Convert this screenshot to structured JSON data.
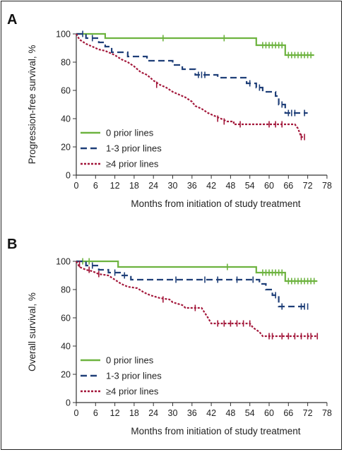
{
  "chart_data": [
    {
      "type": "line",
      "panel": "A",
      "ylabel": "Progression-free survival, %",
      "xlabel": "Months from initiation of study treatment",
      "xlim": [
        0,
        78
      ],
      "ylim": [
        0,
        100
      ],
      "xticks": [
        0,
        6,
        12,
        18,
        24,
        30,
        36,
        42,
        48,
        54,
        60,
        66,
        72,
        78
      ],
      "yticks": [
        0,
        20,
        40,
        60,
        80,
        100
      ],
      "grid": false,
      "legend": "bottom-left",
      "series": [
        {
          "name": "0 prior lines",
          "color": "#6db33f",
          "dash": "solid",
          "points": [
            [
              0,
              100
            ],
            [
              9,
              100
            ],
            [
              9,
              97
            ],
            [
              56,
              97
            ],
            [
              56,
              92
            ],
            [
              65,
              92
            ],
            [
              65,
              85
            ],
            [
              74,
              85
            ]
          ],
          "censor": [
            [
              27,
              97
            ],
            [
              46,
              97
            ],
            [
              58,
              92
            ],
            [
              59,
              92
            ],
            [
              60,
              92
            ],
            [
              61,
              92
            ],
            [
              62,
              92
            ],
            [
              63,
              92
            ],
            [
              64,
              92
            ],
            [
              66,
              85
            ],
            [
              67,
              85
            ],
            [
              68,
              85
            ],
            [
              69,
              85
            ],
            [
              70,
              85
            ],
            [
              71,
              85
            ],
            [
              72,
              85
            ],
            [
              73,
              85
            ]
          ]
        },
        {
          "name": "1-3 prior lines",
          "color": "#1f3f78",
          "dash": "dashed",
          "points": [
            [
              0,
              100
            ],
            [
              3,
              100
            ],
            [
              3,
              97
            ],
            [
              7,
              97
            ],
            [
              7,
              94
            ],
            [
              9,
              94
            ],
            [
              9,
              91
            ],
            [
              11,
              91
            ],
            [
              11,
              87
            ],
            [
              16,
              87
            ],
            [
              16,
              84
            ],
            [
              22,
              84
            ],
            [
              22,
              81
            ],
            [
              30,
              81
            ],
            [
              30,
              78
            ],
            [
              33,
              78
            ],
            [
              33,
              75
            ],
            [
              37,
              75
            ],
            [
              37,
              71
            ],
            [
              44,
              71
            ],
            [
              44,
              69
            ],
            [
              53,
              69
            ],
            [
              53,
              65
            ],
            [
              56,
              65
            ],
            [
              56,
              62
            ],
            [
              58,
              62
            ],
            [
              58,
              59
            ],
            [
              62,
              59
            ],
            [
              62,
              56
            ],
            [
              63,
              56
            ],
            [
              63,
              50
            ],
            [
              65,
              50
            ],
            [
              65,
              44
            ],
            [
              72,
              44
            ]
          ],
          "censor": [
            [
              2,
              100
            ],
            [
              5,
              97
            ],
            [
              38,
              71
            ],
            [
              39,
              71
            ],
            [
              40,
              71
            ],
            [
              54,
              65
            ],
            [
              57,
              62
            ],
            [
              64,
              50
            ],
            [
              66,
              44
            ],
            [
              67,
              44
            ],
            [
              68,
              44
            ],
            [
              71,
              44
            ]
          ]
        },
        {
          "name": "≥4 prior lines",
          "color": "#a3173a",
          "dash": "dotted",
          "points": [
            [
              0,
              100
            ],
            [
              1,
              96
            ],
            [
              3,
              93
            ],
            [
              5,
              91
            ],
            [
              7,
              89
            ],
            [
              9,
              88
            ],
            [
              12,
              85
            ],
            [
              14,
              82
            ],
            [
              16,
              80
            ],
            [
              18,
              77
            ],
            [
              19,
              75
            ],
            [
              20,
              73
            ],
            [
              22,
              71
            ],
            [
              24,
              67
            ],
            [
              26,
              64
            ],
            [
              28,
              62
            ],
            [
              30,
              59
            ],
            [
              32,
              57
            ],
            [
              34,
              55
            ],
            [
              36,
              52
            ],
            [
              37,
              49
            ],
            [
              39,
              47
            ],
            [
              41,
              44
            ],
            [
              43,
              42
            ],
            [
              45,
              40
            ],
            [
              47,
              38
            ],
            [
              49,
              38
            ],
            [
              49,
              36
            ],
            [
              68,
              36
            ],
            [
              69,
              33
            ],
            [
              70,
              27
            ],
            [
              71,
              27
            ]
          ],
          "censor": [
            [
              25,
              64
            ],
            [
              44,
              40
            ],
            [
              46,
              38
            ],
            [
              51,
              36
            ],
            [
              60,
              36
            ],
            [
              62,
              36
            ],
            [
              64,
              36
            ],
            [
              70,
              27
            ],
            [
              71,
              27
            ]
          ]
        }
      ]
    },
    {
      "type": "line",
      "panel": "B",
      "ylabel": "Overall survival, %",
      "xlabel": "Months from initiation of study treatment",
      "xlim": [
        0,
        78
      ],
      "ylim": [
        0,
        100
      ],
      "xticks": [
        0,
        6,
        12,
        18,
        24,
        30,
        36,
        42,
        48,
        54,
        60,
        66,
        72,
        78
      ],
      "yticks": [
        0,
        20,
        40,
        60,
        80,
        100
      ],
      "grid": false,
      "legend": "bottom-left",
      "series": [
        {
          "name": "0 prior lines",
          "color": "#6db33f",
          "dash": "solid",
          "points": [
            [
              0,
              100
            ],
            [
              13,
              100
            ],
            [
              13,
              96
            ],
            [
              56,
              96
            ],
            [
              56,
              92
            ],
            [
              65,
              92
            ],
            [
              65,
              86
            ],
            [
              75,
              86
            ]
          ],
          "censor": [
            [
              2,
              100
            ],
            [
              4,
              100
            ],
            [
              47,
              96
            ],
            [
              58,
              92
            ],
            [
              59,
              92
            ],
            [
              60,
              92
            ],
            [
              61,
              92
            ],
            [
              62,
              92
            ],
            [
              63,
              92
            ],
            [
              64,
              92
            ],
            [
              66,
              86
            ],
            [
              67,
              86
            ],
            [
              68,
              86
            ],
            [
              69,
              86
            ],
            [
              70,
              86
            ],
            [
              71,
              86
            ],
            [
              72,
              86
            ],
            [
              73,
              86
            ],
            [
              74,
              86
            ]
          ]
        },
        {
          "name": "1-3 prior lines",
          "color": "#1f3f78",
          "dash": "dashed",
          "points": [
            [
              0,
              100
            ],
            [
              3,
              100
            ],
            [
              3,
              97
            ],
            [
              7,
              97
            ],
            [
              7,
              94
            ],
            [
              10,
              94
            ],
            [
              10,
              92
            ],
            [
              14,
              92
            ],
            [
              14,
              90
            ],
            [
              17,
              90
            ],
            [
              17,
              87
            ],
            [
              57,
              87
            ],
            [
              57,
              84
            ],
            [
              59,
              84
            ],
            [
              59,
              80
            ],
            [
              61,
              80
            ],
            [
              61,
              76
            ],
            [
              63,
              76
            ],
            [
              63,
              68
            ],
            [
              72,
              68
            ]
          ],
          "censor": [
            [
              5,
              97
            ],
            [
              12,
              92
            ],
            [
              15,
              90
            ],
            [
              31,
              87
            ],
            [
              40,
              87
            ],
            [
              44,
              87
            ],
            [
              50,
              87
            ],
            [
              55,
              87
            ],
            [
              62,
              76
            ],
            [
              64,
              68
            ],
            [
              70,
              68
            ],
            [
              71,
              68
            ],
            [
              72,
              68
            ]
          ]
        },
        {
          "name": "≥4 prior lines",
          "color": "#a3173a",
          "dash": "dotted",
          "points": [
            [
              0,
              100
            ],
            [
              1,
              96
            ],
            [
              3,
              94
            ],
            [
              5,
              93
            ],
            [
              7,
              91
            ],
            [
              10,
              90
            ],
            [
              12,
              87
            ],
            [
              14,
              84
            ],
            [
              16,
              82
            ],
            [
              19,
              81
            ],
            [
              21,
              78
            ],
            [
              23,
              76
            ],
            [
              26,
              74
            ],
            [
              29,
              73
            ],
            [
              30,
              71
            ],
            [
              33,
              69
            ],
            [
              34,
              67
            ],
            [
              39,
              67
            ],
            [
              41,
              60
            ],
            [
              42,
              56
            ],
            [
              54,
              56
            ],
            [
              55,
              53
            ],
            [
              57,
              50
            ],
            [
              58,
              47
            ],
            [
              75,
              47
            ]
          ],
          "censor": [
            [
              1,
              98
            ],
            [
              4,
              94
            ],
            [
              7,
              91
            ],
            [
              27,
              73
            ],
            [
              37,
              67
            ],
            [
              44,
              56
            ],
            [
              46,
              56
            ],
            [
              48,
              56
            ],
            [
              50,
              56
            ],
            [
              52,
              56
            ],
            [
              54,
              56
            ],
            [
              60,
              47
            ],
            [
              61,
              47
            ],
            [
              64,
              47
            ],
            [
              66,
              47
            ],
            [
              68,
              47
            ],
            [
              70,
              47
            ],
            [
              72,
              47
            ],
            [
              73,
              47
            ],
            [
              75,
              47
            ]
          ]
        }
      ]
    }
  ]
}
